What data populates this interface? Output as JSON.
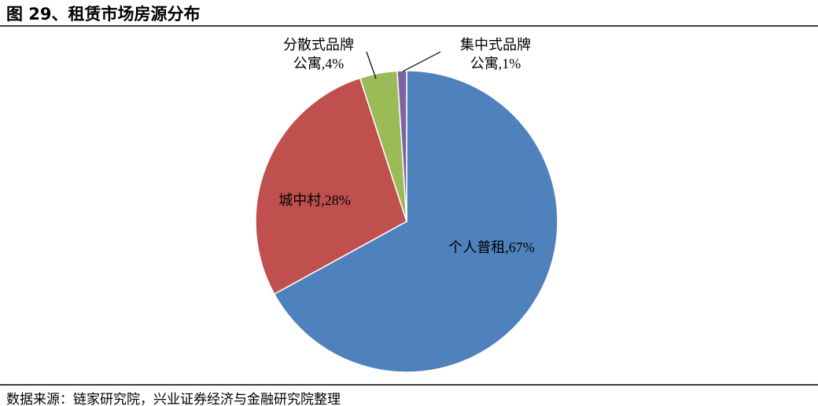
{
  "chart_data": {
    "type": "pie",
    "title": "图 29、租赁市场房源分布",
    "values": [
      67,
      28,
      4,
      1
    ],
    "value_labels": [
      "个人普租,67%",
      "城中村,28%",
      "分散式品牌公寓,4%",
      "集中式品牌公寓,1%"
    ],
    "colors": [
      "#4f81bd",
      "#c0504d",
      "#9bbb59",
      "#8064a2"
    ],
    "source": "数据来源：链家研究院，兴业证券经济与金融研究院整理"
  }
}
